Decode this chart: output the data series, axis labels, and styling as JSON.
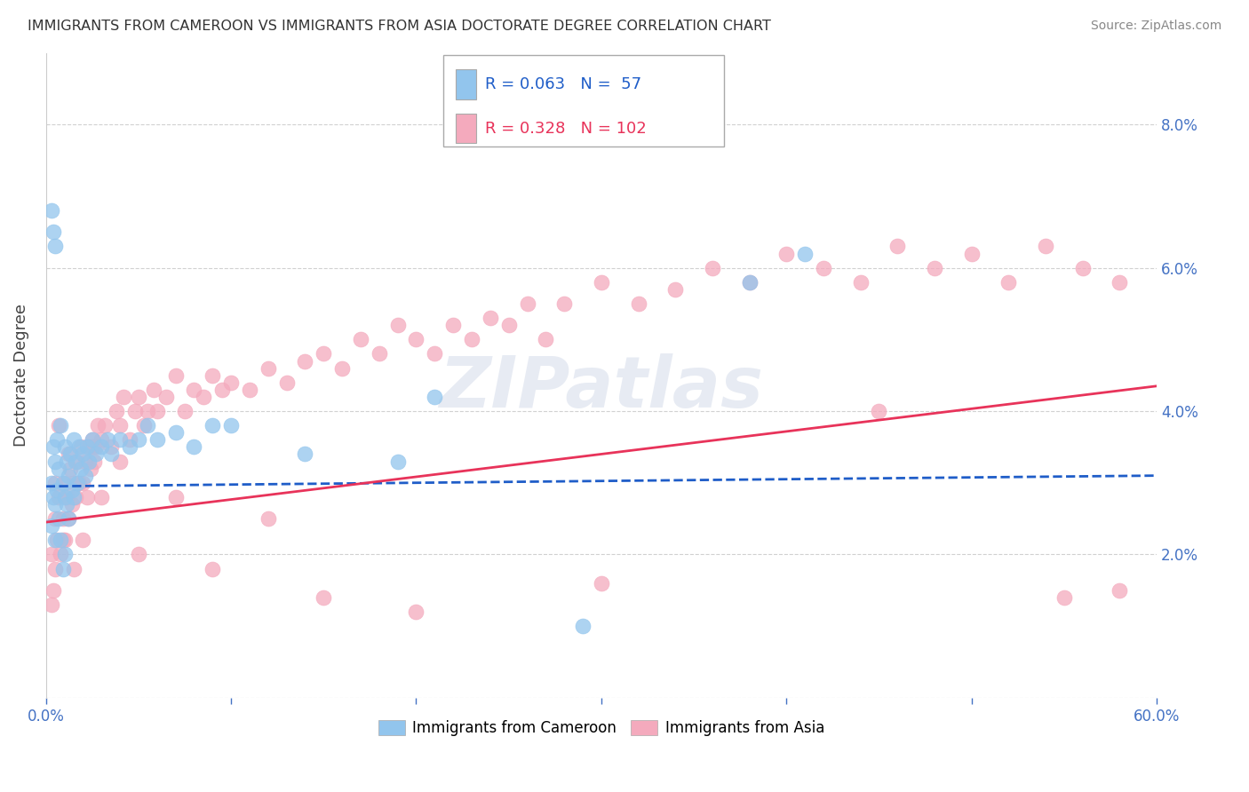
{
  "title": "IMMIGRANTS FROM CAMEROON VS IMMIGRANTS FROM ASIA DOCTORATE DEGREE CORRELATION CHART",
  "source": "Source: ZipAtlas.com",
  "ylabel": "Doctorate Degree",
  "xlim": [
    0.0,
    0.6
  ],
  "ylim": [
    0.0,
    0.09
  ],
  "xticks": [
    0.0,
    0.1,
    0.2,
    0.3,
    0.4,
    0.5,
    0.6
  ],
  "xtick_labels_show": [
    "0.0%",
    "",
    "",
    "",
    "",
    "",
    "60.0%"
  ],
  "yticks": [
    0.0,
    0.02,
    0.04,
    0.06,
    0.08
  ],
  "ytick_labels_right": [
    "",
    "2.0%",
    "4.0%",
    "6.0%",
    "8.0%"
  ],
  "legend_r_cameroon": "R = 0.063",
  "legend_n_cameroon": "N =  57",
  "legend_r_asia": "R = 0.328",
  "legend_n_asia": "N = 102",
  "cameroon_color": "#92C5ED",
  "asia_color": "#F4AABD",
  "line_cameroon_color": "#1F5DC8",
  "line_asia_color": "#E8335A",
  "background_color": "#ffffff",
  "grid_color": "#cccccc",
  "cameroon_x": [
    0.003,
    0.003,
    0.004,
    0.004,
    0.005,
    0.005,
    0.005,
    0.006,
    0.006,
    0.007,
    0.007,
    0.008,
    0.008,
    0.009,
    0.009,
    0.01,
    0.01,
    0.01,
    0.011,
    0.011,
    0.012,
    0.012,
    0.013,
    0.014,
    0.015,
    0.015,
    0.016,
    0.017,
    0.018,
    0.019,
    0.02,
    0.021,
    0.022,
    0.023,
    0.025,
    0.027,
    0.03,
    0.033,
    0.035,
    0.04,
    0.045,
    0.05,
    0.055,
    0.06,
    0.07,
    0.08,
    0.09,
    0.1,
    0.14,
    0.19,
    0.21,
    0.29,
    0.38,
    0.41,
    0.003,
    0.004,
    0.005
  ],
  "cameroon_y": [
    0.03,
    0.024,
    0.035,
    0.028,
    0.033,
    0.027,
    0.022,
    0.036,
    0.029,
    0.032,
    0.025,
    0.038,
    0.022,
    0.03,
    0.018,
    0.035,
    0.028,
    0.02,
    0.033,
    0.027,
    0.031,
    0.025,
    0.034,
    0.029,
    0.036,
    0.028,
    0.033,
    0.03,
    0.035,
    0.032,
    0.034,
    0.031,
    0.035,
    0.033,
    0.036,
    0.034,
    0.035,
    0.036,
    0.034,
    0.036,
    0.035,
    0.036,
    0.038,
    0.036,
    0.037,
    0.035,
    0.038,
    0.038,
    0.034,
    0.033,
    0.042,
    0.01,
    0.058,
    0.062,
    0.068,
    0.065,
    0.063
  ],
  "asia_x": [
    0.003,
    0.004,
    0.005,
    0.005,
    0.006,
    0.007,
    0.008,
    0.009,
    0.01,
    0.01,
    0.011,
    0.012,
    0.013,
    0.014,
    0.015,
    0.016,
    0.017,
    0.018,
    0.019,
    0.02,
    0.021,
    0.022,
    0.023,
    0.024,
    0.025,
    0.026,
    0.027,
    0.028,
    0.03,
    0.032,
    0.035,
    0.038,
    0.04,
    0.042,
    0.045,
    0.048,
    0.05,
    0.053,
    0.055,
    0.058,
    0.06,
    0.065,
    0.07,
    0.075,
    0.08,
    0.085,
    0.09,
    0.095,
    0.1,
    0.11,
    0.12,
    0.13,
    0.14,
    0.15,
    0.16,
    0.17,
    0.18,
    0.19,
    0.2,
    0.21,
    0.22,
    0.23,
    0.24,
    0.25,
    0.26,
    0.27,
    0.28,
    0.3,
    0.32,
    0.34,
    0.36,
    0.38,
    0.4,
    0.42,
    0.44,
    0.46,
    0.48,
    0.5,
    0.52,
    0.54,
    0.56,
    0.58,
    0.003,
    0.005,
    0.007,
    0.009,
    0.012,
    0.015,
    0.02,
    0.025,
    0.03,
    0.04,
    0.05,
    0.07,
    0.09,
    0.12,
    0.15,
    0.2,
    0.3,
    0.45,
    0.55,
    0.58
  ],
  "asia_y": [
    0.02,
    0.015,
    0.025,
    0.018,
    0.022,
    0.028,
    0.02,
    0.025,
    0.03,
    0.022,
    0.028,
    0.025,
    0.032,
    0.027,
    0.03,
    0.028,
    0.033,
    0.03,
    0.035,
    0.03,
    0.033,
    0.028,
    0.035,
    0.032,
    0.036,
    0.033,
    0.035,
    0.038,
    0.036,
    0.038,
    0.035,
    0.04,
    0.038,
    0.042,
    0.036,
    0.04,
    0.042,
    0.038,
    0.04,
    0.043,
    0.04,
    0.042,
    0.045,
    0.04,
    0.043,
    0.042,
    0.045,
    0.043,
    0.044,
    0.043,
    0.046,
    0.044,
    0.047,
    0.048,
    0.046,
    0.05,
    0.048,
    0.052,
    0.05,
    0.048,
    0.052,
    0.05,
    0.053,
    0.052,
    0.055,
    0.05,
    0.055,
    0.058,
    0.055,
    0.057,
    0.06,
    0.058,
    0.062,
    0.06,
    0.058,
    0.063,
    0.06,
    0.062,
    0.058,
    0.063,
    0.06,
    0.058,
    0.013,
    0.03,
    0.038,
    0.022,
    0.034,
    0.018,
    0.022,
    0.035,
    0.028,
    0.033,
    0.02,
    0.028,
    0.018,
    0.025,
    0.014,
    0.012,
    0.016,
    0.04,
    0.014,
    0.015
  ],
  "line_cameroon_x0": 0.0,
  "line_cameroon_x1": 0.6,
  "line_cameroon_y0": 0.0295,
  "line_cameroon_y1": 0.031,
  "line_asia_x0": 0.0,
  "line_asia_x1": 0.6,
  "line_asia_y0": 0.0245,
  "line_asia_y1": 0.0435
}
